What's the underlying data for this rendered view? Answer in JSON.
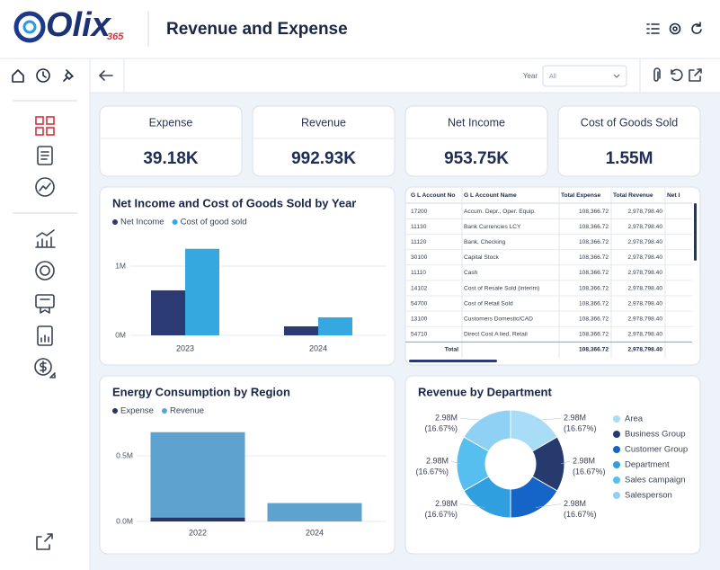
{
  "header": {
    "logo": "Olix",
    "logo_suffix": "365",
    "title": "Revenue and Expense"
  },
  "toolbar": {
    "year_label": "Year",
    "year_value": "All"
  },
  "kpis": [
    {
      "label": "Expense",
      "value": "39.18K"
    },
    {
      "label": "Revenue",
      "value": "992.93K"
    },
    {
      "label": "Net Income",
      "value": "953.75K"
    },
    {
      "label": "Cost of Goods Sold",
      "value": "1.55M"
    }
  ],
  "chart_data": [
    {
      "type": "bar",
      "title": "Net Income and Cost of Goods Sold by Year",
      "categories": [
        "2023",
        "2024"
      ],
      "series": [
        {
          "name": "Net Income",
          "color": "#2b3a73",
          "values": [
            0.65,
            0.13
          ]
        },
        {
          "name": "Cost of good sold",
          "color": "#35a8e0",
          "values": [
            1.25,
            0.26
          ]
        }
      ],
      "ylim": [
        0,
        1.6
      ],
      "yticks": [
        {
          "value": 0,
          "label": "0M"
        },
        {
          "value": 1,
          "label": "1M"
        }
      ],
      "grid": true,
      "stacked": false
    },
    {
      "type": "bar",
      "title": "Energy Consumption by Region",
      "categories": [
        "2022",
        "2024"
      ],
      "series": [
        {
          "name": "Expense",
          "color": "#263566",
          "values": [
            0.03,
            0
          ]
        },
        {
          "name": "Revenue",
          "color": "#5ea3cf",
          "values": [
            0.65,
            0.14
          ]
        }
      ],
      "ylim": [
        0,
        0.75
      ],
      "yticks": [
        {
          "value": 0,
          "label": "0.0M"
        },
        {
          "value": 0.5,
          "label": "0.5M"
        }
      ],
      "grid": true,
      "stacked": true
    },
    {
      "type": "pie",
      "title": "Revenue by Department",
      "donut": true,
      "categories": [
        "Area",
        "Business Group",
        "Customer Group",
        "Department",
        "Sales campaign",
        "Salesperson"
      ],
      "colors": [
        "#a9dcf6",
        "#263a6e",
        "#1565c8",
        "#2f9fe0",
        "#56bff0",
        "#8fd0f5"
      ],
      "values": [
        2.98,
        2.98,
        2.98,
        2.98,
        2.98,
        2.98
      ],
      "value_labels": [
        "2.98M",
        "2.98M",
        "2.98M",
        "2.98M",
        "2.98M",
        "2.98M"
      ],
      "percent_labels": [
        "(16.67%)",
        "(16.67%)",
        "(16.67%)",
        "(16.67%)",
        "(16.67%)",
        "(16.67%)"
      ]
    }
  ],
  "table": {
    "columns": [
      "G L Account No",
      "G L Account Name",
      "Total Expense",
      "Total Revenue",
      "Net I"
    ],
    "rows": [
      [
        "17200",
        "Accum. Depr., Oper. Equip.",
        "108,366.72",
        "2,978,798.40"
      ],
      [
        "11130",
        "Bank Currencies LCY",
        "108,366.72",
        "2,978,798.40"
      ],
      [
        "11120",
        "Bank, Checking",
        "108,366.72",
        "2,978,798.40"
      ],
      [
        "30100",
        "Capital Stock",
        "108,366.72",
        "2,978,798.40"
      ],
      [
        "11110",
        "Cash",
        "108,366.72",
        "2,978,798.40"
      ],
      [
        "14102",
        "Cost of Resale Sold (interim)",
        "108,366.72",
        "2,978,798.40"
      ],
      [
        "54700",
        "Cost of Retail Sold",
        "108,366.72",
        "2,978,798.40"
      ],
      [
        "13100",
        "Customers Domestic/CAD",
        "108,366.72",
        "2,978,798.40"
      ],
      [
        "54710",
        "Direct Cost A lied, Retail",
        "108,366.72",
        "2,978,798.40"
      ]
    ],
    "total": [
      "Total",
      "108,366.72",
      "2,978,798.40"
    ]
  }
}
